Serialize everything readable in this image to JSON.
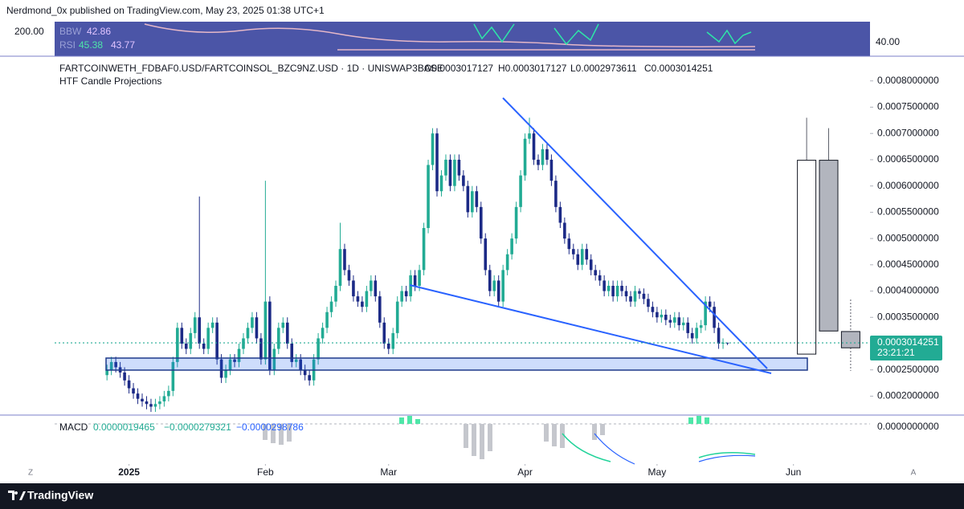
{
  "header": "Nerdmond_0x published on TradingView.com, May 23, 2025 01:38 UTC+1",
  "top_pane": {
    "left_label": "200.00",
    "right_label": "40.00",
    "bbw_name": "BBW",
    "bbw_value": "42.86",
    "rsi_name": "RSI",
    "rsi_values": [
      "45.38",
      "43.77"
    ]
  },
  "chart_data": {
    "type": "candlestick",
    "symbol": "FARTCOINWETH_FDBAF0.USD/FARTCOINSOL_BZC9NZ.USD · 1D · UNISWAP3BASE",
    "ohlc_labels": [
      "O0.0003017127",
      "H0.0003017127",
      "L0.0002973611",
      "C0.0003014251"
    ],
    "indicator": "HTF Candle Projections",
    "up_color": "#22ab94",
    "down_color": "#1c2a86",
    "open": [
      0.00024,
      0.00025,
      0.000265,
      0.000255,
      0.000245,
      0.00023,
      0.000215,
      0.000205,
      0.000195,
      0.00019,
      0.000185,
      0.00018,
      0.000185,
      0.00019,
      0.0002,
      0.00021,
      0.000265,
      0.00033,
      0.0003,
      0.00029,
      0.00032,
      0.00035,
      0.0003,
      0.00029,
      0.00033,
      0.00034,
      0.00027,
      0.000235,
      0.00025,
      0.00027,
      0.000265,
      0.00029,
      0.00031,
      0.00033,
      0.00035,
      0.00031,
      0.00027,
      0.00038,
      0.00025,
      0.00029,
      0.00033,
      0.00034,
      0.0003,
      0.000265,
      0.00027,
      0.00025,
      0.00024,
      0.00023,
      0.00027,
      0.00031,
      0.00033,
      0.00036,
      0.00038,
      0.00041,
      0.00048,
      0.00044,
      0.00042,
      0.00039,
      0.00038,
      0.00037,
      0.0004,
      0.00042,
      0.00039,
      0.00034,
      0.0003,
      0.00029,
      0.00032,
      0.00038,
      0.0004,
      0.00039,
      0.00043,
      0.00041,
      0.00044,
      0.00052,
      0.00064,
      0.0007,
      0.00059,
      0.00062,
      0.00065,
      0.0006,
      0.00065,
      0.00062,
      0.0006,
      0.00055,
      0.00059,
      0.00056,
      0.0005,
      0.00044,
      0.0004,
      0.00042,
      0.00038,
      0.00044,
      0.00047,
      0.0005,
      0.00056,
      0.00062,
      0.00069,
      0.0007,
      0.00065,
      0.00064,
      0.00067,
      0.00065,
      0.00061,
      0.00056,
      0.00053,
      0.0005,
      0.00048,
      0.00047,
      0.00045,
      0.00048,
      0.00046,
      0.00044,
      0.00043,
      0.00042,
      0.0004,
      0.00041,
      0.00039,
      0.00041,
      0.0004,
      0.00039,
      0.00038,
      0.0004,
      0.000395,
      0.000385,
      0.00037,
      0.00036,
      0.00035,
      0.000355,
      0.000345,
      0.00034,
      0.00035,
      0.000335,
      0.00034,
      0.00032,
      0.00031,
      0.00033,
      0.000335,
      0.00038,
      0.00037,
      0.00033,
      0.0003,
      0.0003017127
    ],
    "high": [
      0.00026,
      0.000275,
      0.000275,
      0.000265,
      0.000255,
      0.00024,
      0.000225,
      0.000215,
      0.000205,
      0.0002,
      0.000195,
      0.000195,
      0.0002,
      0.00021,
      0.00022,
      0.000275,
      0.00034,
      0.00034,
      0.00031,
      0.00033,
      0.00036,
      0.00058,
      0.00031,
      0.00034,
      0.00035,
      0.00035,
      0.00028,
      0.00026,
      0.00028,
      0.00028,
      0.0003,
      0.00032,
      0.00034,
      0.00036,
      0.00036,
      0.00032,
      0.00061,
      0.00039,
      0.0003,
      0.00034,
      0.00035,
      0.00035,
      0.00031,
      0.00028,
      0.00028,
      0.00026,
      0.00025,
      0.00028,
      0.00032,
      0.00034,
      0.00037,
      0.00039,
      0.00042,
      0.00053,
      0.00049,
      0.00045,
      0.00043,
      0.0004,
      0.00039,
      0.00041,
      0.00043,
      0.00043,
      0.0004,
      0.00035,
      0.00031,
      0.00033,
      0.00039,
      0.00041,
      0.00041,
      0.00044,
      0.00044,
      0.00045,
      0.00053,
      0.00065,
      0.00071,
      0.00071,
      0.00063,
      0.00066,
      0.00066,
      0.00066,
      0.00066,
      0.00063,
      0.00061,
      0.0006,
      0.0006,
      0.00057,
      0.00051,
      0.00045,
      0.00043,
      0.00043,
      0.00045,
      0.00048,
      0.00051,
      0.00057,
      0.00063,
      0.0007,
      0.00073,
      0.00071,
      0.00066,
      0.00068,
      0.00068,
      0.00066,
      0.00062,
      0.00057,
      0.00054,
      0.00051,
      0.00049,
      0.00048,
      0.00049,
      0.00049,
      0.00047,
      0.00045,
      0.00044,
      0.00043,
      0.00042,
      0.00042,
      0.00042,
      0.00042,
      0.00041,
      0.0004,
      0.00041,
      0.000405,
      0.000405,
      0.000395,
      0.00038,
      0.00037,
      0.000365,
      0.000365,
      0.000355,
      0.00036,
      0.00036,
      0.00035,
      0.00035,
      0.00033,
      0.00034,
      0.000345,
      0.00039,
      0.00039,
      0.00038,
      0.00034,
      0.00031,
      0.0003017127
    ],
    "low": [
      0.00023,
      0.00024,
      0.000245,
      0.000235,
      0.00022,
      0.000205,
      0.000195,
      0.000185,
      0.00018,
      0.000175,
      0.00017,
      0.00017,
      0.000175,
      0.00018,
      0.00019,
      0.0002,
      0.000255,
      0.00029,
      0.00028,
      0.00028,
      0.00031,
      0.00029,
      0.00028,
      0.00028,
      0.00032,
      0.00026,
      0.000225,
      0.000225,
      0.00024,
      0.000255,
      0.000255,
      0.00028,
      0.0003,
      0.00032,
      0.0003,
      0.00026,
      0.00026,
      0.00024,
      0.00024,
      0.00028,
      0.00032,
      0.00029,
      0.000255,
      0.000255,
      0.00024,
      0.00023,
      0.00022,
      0.00022,
      0.00026,
      0.0003,
      0.00032,
      0.00035,
      0.00037,
      0.0004,
      0.00043,
      0.00041,
      0.00038,
      0.00037,
      0.00036,
      0.00036,
      0.00039,
      0.00038,
      0.00033,
      0.00029,
      0.00028,
      0.00028,
      0.00031,
      0.00037,
      0.00038,
      0.00038,
      0.0004,
      0.0004,
      0.00043,
      0.00051,
      0.00063,
      0.00058,
      0.00058,
      0.00061,
      0.00059,
      0.00059,
      0.00061,
      0.00059,
      0.00054,
      0.00054,
      0.00055,
      0.00049,
      0.00043,
      0.00039,
      0.00039,
      0.00037,
      0.00037,
      0.00043,
      0.00046,
      0.00049,
      0.00055,
      0.00061,
      0.00068,
      0.00064,
      0.00063,
      0.00063,
      0.00064,
      0.0006,
      0.00055,
      0.00052,
      0.00049,
      0.00047,
      0.00046,
      0.00044,
      0.00044,
      0.00045,
      0.00043,
      0.00042,
      0.00041,
      0.00039,
      0.00039,
      0.00038,
      0.00038,
      0.00039,
      0.00038,
      0.00037,
      0.00037,
      0.000385,
      0.000375,
      0.00036,
      0.00035,
      0.00034,
      0.00034,
      0.000335,
      0.00033,
      0.00033,
      0.000325,
      0.000325,
      0.00031,
      0.0003,
      0.0003,
      0.00032,
      0.000325,
      0.00036,
      0.00032,
      0.00029,
      0.00029,
      0.0002973611
    ],
    "close": [
      0.00025,
      0.000265,
      0.000255,
      0.000245,
      0.00023,
      0.000215,
      0.000205,
      0.000195,
      0.00019,
      0.000185,
      0.00018,
      0.000185,
      0.00019,
      0.0002,
      0.00021,
      0.000265,
      0.00033,
      0.0003,
      0.00029,
      0.00032,
      0.00035,
      0.0003,
      0.00029,
      0.00033,
      0.00034,
      0.00027,
      0.000235,
      0.00025,
      0.00027,
      0.000265,
      0.00029,
      0.00031,
      0.00033,
      0.00035,
      0.00031,
      0.00027,
      0.00038,
      0.00025,
      0.00029,
      0.00033,
      0.00034,
      0.0003,
      0.000265,
      0.00027,
      0.00025,
      0.00024,
      0.00023,
      0.00027,
      0.00031,
      0.00033,
      0.00036,
      0.00038,
      0.00041,
      0.00048,
      0.00044,
      0.00042,
      0.00039,
      0.00038,
      0.00037,
      0.0004,
      0.00042,
      0.00039,
      0.00034,
      0.0003,
      0.00029,
      0.00032,
      0.00038,
      0.0004,
      0.00039,
      0.00043,
      0.00041,
      0.00044,
      0.00052,
      0.00064,
      0.0007,
      0.00059,
      0.00062,
      0.00065,
      0.0006,
      0.00065,
      0.00062,
      0.0006,
      0.00055,
      0.00059,
      0.00056,
      0.0005,
      0.00044,
      0.0004,
      0.00042,
      0.00038,
      0.00044,
      0.00047,
      0.0005,
      0.00056,
      0.00062,
      0.00069,
      0.0007,
      0.00065,
      0.00064,
      0.00067,
      0.00065,
      0.00061,
      0.00056,
      0.00053,
      0.0005,
      0.00048,
      0.00047,
      0.00045,
      0.00048,
      0.00046,
      0.00044,
      0.00043,
      0.00042,
      0.0004,
      0.00041,
      0.00039,
      0.00041,
      0.0004,
      0.00039,
      0.00038,
      0.0004,
      0.000395,
      0.000385,
      0.00037,
      0.00036,
      0.00035,
      0.000355,
      0.000345,
      0.00034,
      0.00035,
      0.000335,
      0.00034,
      0.00032,
      0.00031,
      0.00033,
      0.000335,
      0.00038,
      0.00037,
      0.00033,
      0.0003,
      0.0003017127,
      0.0003014251
    ],
    "projections": [
      {
        "x": 159,
        "open": 0.00028,
        "high": 0.00073,
        "low": 0.00028,
        "close": 0.000649,
        "color": "#ffffff"
      },
      {
        "x": 164,
        "open": 0.000649,
        "high": 0.00071,
        "low": 0.000324,
        "close": 0.000324,
        "color": "#b2b5be"
      },
      {
        "x": 169,
        "open": 0.000323,
        "high": 0.000384,
        "low": 0.000248,
        "close": 0.000292,
        "color": "#b2b5be"
      }
    ],
    "last_price": 0.0003014251,
    "last_price_label": "0.0003014251",
    "countdown": "23:21:21",
    "xlim": [
      -11.9,
      173.4
    ],
    "xticks": [
      {
        "value": 5,
        "label": "2025"
      },
      {
        "value": 36,
        "label": "Feb"
      },
      {
        "value": 64,
        "label": "Mar"
      },
      {
        "value": 95,
        "label": "Apr"
      },
      {
        "value": 125,
        "label": "May"
      },
      {
        "value": 156,
        "label": "Jun"
      }
    ],
    "ylim": [
      0.000164,
      0.000847
    ],
    "yticks": [
      {
        "value": 0.0008,
        "label": "0.0008000000"
      },
      {
        "value": 0.00075,
        "label": "0.0007500000"
      },
      {
        "value": 0.0007,
        "label": "0.0007000000"
      },
      {
        "value": 0.00065,
        "label": "0.0006500000"
      },
      {
        "value": 0.0006,
        "label": "0.0006000000"
      },
      {
        "value": 0.00055,
        "label": "0.0005500000"
      },
      {
        "value": 0.0005,
        "label": "0.0005000000"
      },
      {
        "value": 0.00045,
        "label": "0.0004500000"
      },
      {
        "value": 0.0004,
        "label": "0.0004000000"
      },
      {
        "value": 0.00035,
        "label": "0.0003500000"
      },
      {
        "value": 0.00025,
        "label": "0.0002500000"
      },
      {
        "value": 0.0002,
        "label": "0.0002000000"
      }
    ]
  },
  "macd": {
    "name": "MACD",
    "values": [
      "0.0000019465",
      "−0.0000279321",
      "−0.0000298786"
    ],
    "axis_label": "0.0000000000"
  },
  "bottom_bar": {
    "left": "Z",
    "right": "A"
  },
  "footer": {
    "brand": "TradingView"
  }
}
